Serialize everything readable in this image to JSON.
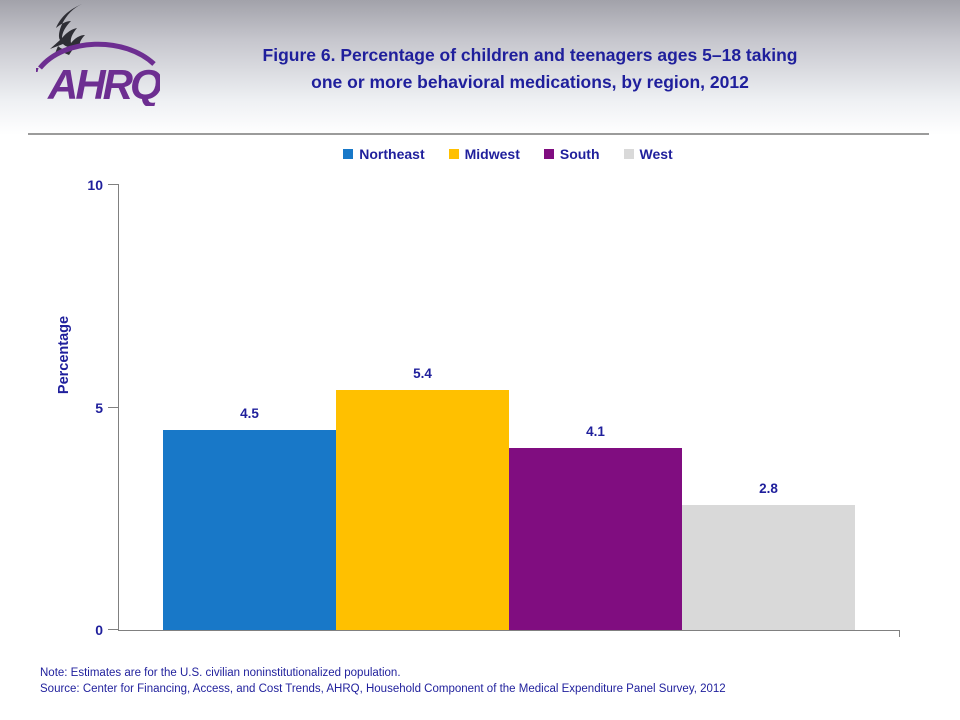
{
  "header": {
    "logo_text": "AHRQ",
    "title_line1": "Figure 6. Percentage of children and teenagers ages 5–18 taking",
    "title_line2": "one or more behavioral medications, by region, 2012"
  },
  "chart_data": {
    "type": "bar",
    "title": "Figure 6. Percentage of children and teenagers ages 5–18 taking one or more behavioral medications, by region, 2012",
    "categories": [
      "Northeast",
      "Midwest",
      "South",
      "West"
    ],
    "values": [
      4.5,
      5.4,
      4.1,
      2.8
    ],
    "value_labels": [
      "4.5",
      "5.4",
      "4.1",
      "2.8"
    ],
    "colors": [
      "#1878C8",
      "#FFC000",
      "#800D80",
      "#D9D9D9"
    ],
    "ylabel": "Percentage",
    "ylim": [
      0,
      10
    ],
    "yticks": [
      0,
      5,
      10
    ],
    "legend_position": "top-center",
    "grid": false
  },
  "footer": {
    "note": "Note: Estimates are for the U.S. civilian noninstitutionalized population.",
    "source": "Source: Center for Financing, Access, and Cost Trends, AHRQ, Household Component of the Medical Expenditure Panel Survey, 2012"
  },
  "colors": {
    "text_blue": "#1F1F9C",
    "axis_gray": "#808080",
    "logo_purple": "#6D2E91",
    "eagle_dark": "#2E2E35"
  }
}
